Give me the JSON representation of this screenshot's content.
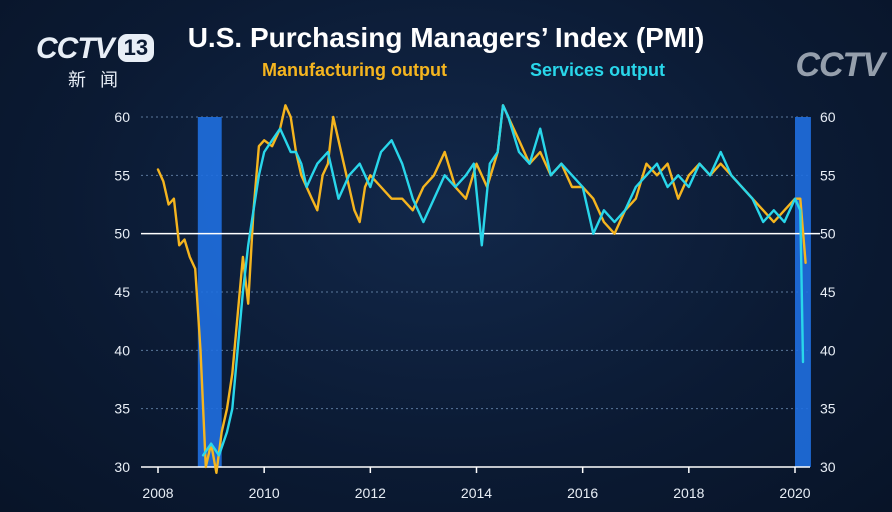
{
  "broadcaster": {
    "logo_text": "CCTV",
    "channel": "13",
    "subtitle": "新闻",
    "watermark": "CCTV"
  },
  "colors": {
    "manufacturing": "#f5b51f",
    "services": "#29d6ea",
    "recession": "#1f6fe0",
    "grid": "#6f8fb5",
    "background": "#0b1a33"
  },
  "chart_data": {
    "type": "line",
    "title": "U.S. Purchasing Managers’ Index (PMI)",
    "xlabel": "",
    "ylabel": "",
    "xlim": [
      2008,
      2020.5
    ],
    "ylim": [
      30,
      60
    ],
    "yticks": [
      30,
      35,
      40,
      45,
      50,
      55,
      60
    ],
    "xticks": [
      2008,
      2010,
      2012,
      2014,
      2016,
      2018,
      2020
    ],
    "reference_line": 50,
    "shaded_periods": [
      [
        2008.75,
        2009.2
      ],
      [
        2020.0,
        2020.3
      ]
    ],
    "series": [
      {
        "name": "Manufacturing output",
        "color": "#f5b51f",
        "x": [
          2008.0,
          2008.1,
          2008.2,
          2008.3,
          2008.4,
          2008.5,
          2008.6,
          2008.7,
          2008.8,
          2008.9,
          2009.0,
          2009.1,
          2009.2,
          2009.3,
          2009.4,
          2009.5,
          2009.6,
          2009.7,
          2009.8,
          2009.9,
          2010.0,
          2010.15,
          2010.3,
          2010.4,
          2010.5,
          2010.6,
          2010.7,
          2010.8,
          2010.9,
          2011.0,
          2011.1,
          2011.2,
          2011.3,
          2011.4,
          2011.5,
          2011.6,
          2011.7,
          2011.8,
          2011.9,
          2012.0,
          2012.2,
          2012.4,
          2012.6,
          2012.8,
          2013.0,
          2013.2,
          2013.4,
          2013.6,
          2013.8,
          2014.0,
          2014.2,
          2014.4,
          2014.5,
          2014.6,
          2014.8,
          2015.0,
          2015.2,
          2015.4,
          2015.6,
          2015.8,
          2016.0,
          2016.2,
          2016.4,
          2016.6,
          2016.8,
          2017.0,
          2017.2,
          2017.4,
          2017.6,
          2017.8,
          2018.0,
          2018.2,
          2018.4,
          2018.6,
          2018.8,
          2019.0,
          2019.2,
          2019.4,
          2019.6,
          2019.8,
          2020.0,
          2020.1,
          2020.2
        ],
        "values": [
          55.5,
          54.5,
          52.5,
          53,
          49,
          49.5,
          48,
          47,
          40,
          30,
          32,
          29.5,
          33,
          35,
          38,
          43,
          48,
          44,
          52,
          57.5,
          58,
          57.5,
          59,
          61,
          60,
          57,
          55,
          54,
          53,
          52,
          55,
          56,
          60,
          58,
          56,
          54,
          52,
          51,
          54,
          55,
          54,
          53,
          53,
          52,
          54,
          55,
          57,
          54,
          53,
          56,
          54,
          57,
          61,
          60,
          58,
          56,
          57,
          55,
          56,
          54,
          54,
          53,
          51,
          50,
          52,
          53,
          56,
          55,
          56,
          53,
          55,
          56,
          55,
          56,
          55,
          54,
          53,
          52,
          51,
          52,
          53,
          53,
          47.5
        ]
      },
      {
        "name": "Services output",
        "color": "#29d6ea",
        "x": [
          2008.85,
          2009.0,
          2009.15,
          2009.3,
          2009.4,
          2009.5,
          2009.6,
          2009.7,
          2009.8,
          2009.9,
          2010.0,
          2010.15,
          2010.3,
          2010.4,
          2010.5,
          2010.6,
          2010.7,
          2010.8,
          2010.9,
          2011.0,
          2011.2,
          2011.4,
          2011.6,
          2011.8,
          2012.0,
          2012.2,
          2012.4,
          2012.6,
          2012.8,
          2013.0,
          2013.2,
          2013.4,
          2013.6,
          2013.8,
          2013.95,
          2014.1,
          2014.25,
          2014.4,
          2014.5,
          2014.6,
          2014.8,
          2015.0,
          2015.2,
          2015.4,
          2015.6,
          2015.8,
          2016.0,
          2016.2,
          2016.4,
          2016.6,
          2016.8,
          2017.0,
          2017.2,
          2017.4,
          2017.6,
          2017.8,
          2018.0,
          2018.2,
          2018.4,
          2018.6,
          2018.8,
          2019.0,
          2019.2,
          2019.4,
          2019.6,
          2019.8,
          2020.0,
          2020.1,
          2020.15
        ],
        "values": [
          31,
          32,
          31,
          33,
          35,
          40,
          45,
          49,
          52,
          55,
          57,
          58,
          59,
          58,
          57,
          57,
          56,
          54,
          55,
          56,
          57,
          53,
          55,
          56,
          54,
          57,
          58,
          56,
          53,
          51,
          53,
          55,
          54,
          55,
          56,
          49,
          56,
          57,
          61,
          60,
          57,
          56,
          59,
          55,
          56,
          55,
          54,
          50,
          52,
          51,
          52,
          54,
          55,
          56,
          54,
          55,
          54,
          56,
          55,
          57,
          55,
          54,
          53,
          51,
          52,
          51,
          53,
          52,
          39
        ]
      }
    ]
  }
}
